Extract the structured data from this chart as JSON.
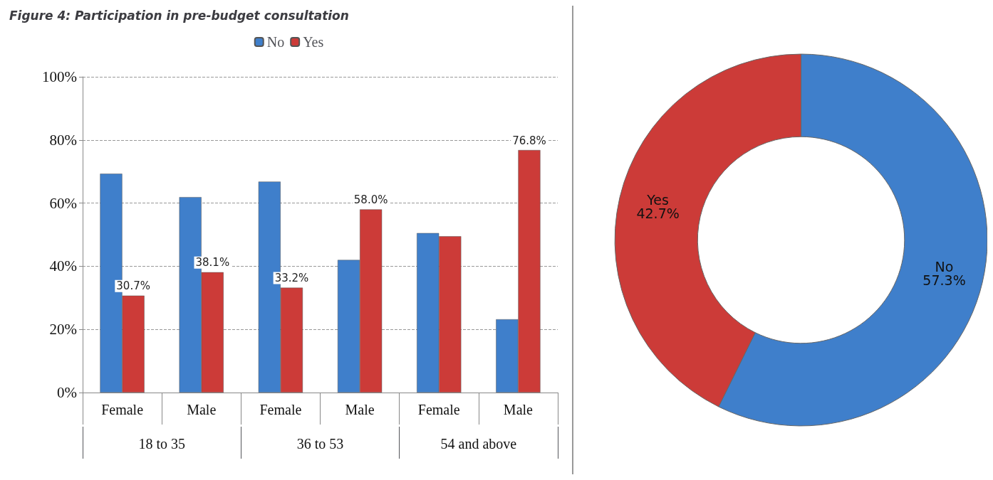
{
  "chart_data": [
    {
      "type": "bar",
      "title": "Figure 4: Participation in pre-budget consultation",
      "categories": [
        "Female",
        "Male",
        "Female",
        "Male",
        "Female",
        "Male"
      ],
      "annotations": [
        "18 to 35",
        "36 to 53",
        "54 and above"
      ],
      "series": [
        {
          "name": "No",
          "color": "#3f7fcb",
          "values": [
            69.3,
            61.9,
            66.8,
            42.0,
            50.5,
            23.2
          ]
        },
        {
          "name": "Yes",
          "color": "#cc3b38",
          "values": [
            30.7,
            38.1,
            33.2,
            58.0,
            49.5,
            76.8
          ],
          "value_labels": [
            "30.7%",
            "38.1%",
            "33.2%",
            "58.0%",
            null,
            "76.8%"
          ]
        }
      ],
      "ylim": [
        0,
        100
      ],
      "yticks": [
        {
          "value": 0,
          "label": "0%"
        },
        {
          "value": 20,
          "label": "20%"
        },
        {
          "value": 40,
          "label": "40%"
        },
        {
          "value": 60,
          "label": "60%"
        },
        {
          "value": 80,
          "label": "80%"
        },
        {
          "value": 100,
          "label": "100%"
        }
      ],
      "grid": "y",
      "legend": "top"
    },
    {
      "type": "donut",
      "categories": [
        "No",
        "Yes"
      ],
      "values": [
        57.3,
        42.7
      ],
      "colors": [
        "#3f7fcb",
        "#cc3b38"
      ],
      "value_labels": [
        "57.3%",
        "42.7%"
      ],
      "legend": false
    }
  ]
}
